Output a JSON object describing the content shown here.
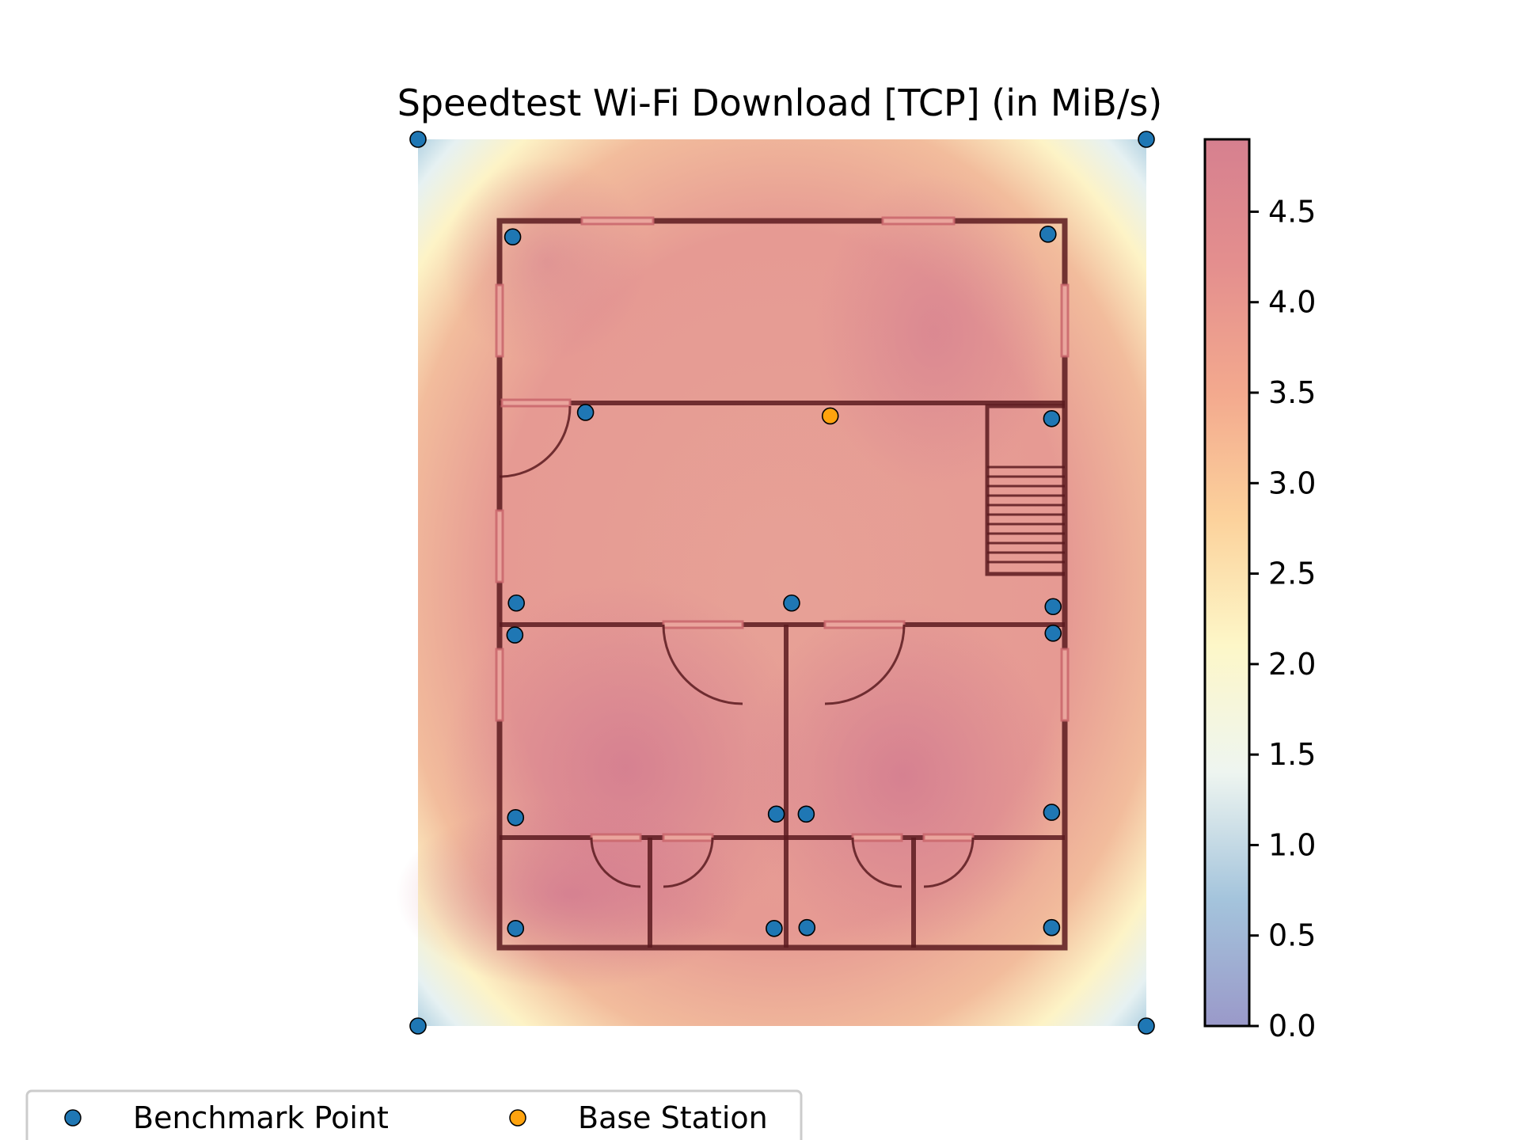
{
  "chart_data": {
    "type": "heatmap",
    "title": "Speedtest Wi-Fi Download [TCP] (in MiB/s)",
    "xlabel": "",
    "ylabel": "",
    "colorbar": {
      "range": [
        0.0,
        4.9
      ],
      "ticks": [
        "0.0",
        "0.5",
        "1.0",
        "1.5",
        "2.0",
        "2.5",
        "3.0",
        "3.5",
        "4.0",
        "4.5"
      ],
      "tick_values": [
        0.0,
        0.5,
        1.0,
        1.5,
        2.0,
        2.5,
        3.0,
        3.5,
        4.0,
        4.5
      ],
      "colormap": [
        "#9a99c9",
        "#a4c4dc",
        "#eef5f0",
        "#fdf7c8",
        "#fcd29c",
        "#f3a98e",
        "#e48f8e",
        "#d6808f"
      ]
    },
    "legend": {
      "placement": "bottom-left",
      "entries": [
        {
          "label": "Benchmark Point",
          "color": "#1f77b4"
        },
        {
          "label": "Base Station",
          "color": "#ffa30e"
        }
      ]
    },
    "points": {
      "benchmark": [
        {
          "x": 0,
          "y": 0
        },
        {
          "x": 100,
          "y": 0
        },
        {
          "x": 0,
          "y": 100
        },
        {
          "x": 100,
          "y": 100
        },
        {
          "x": 13,
          "y": 89
        },
        {
          "x": 86.5,
          "y": 89.3
        },
        {
          "x": 23,
          "y": 69.2
        },
        {
          "x": 87,
          "y": 68.5
        },
        {
          "x": 13.5,
          "y": 47.7
        },
        {
          "x": 51.3,
          "y": 47.7
        },
        {
          "x": 87.2,
          "y": 47.3
        },
        {
          "x": 13.3,
          "y": 44.1
        },
        {
          "x": 87.2,
          "y": 44.3
        },
        {
          "x": 13.4,
          "y": 23.5
        },
        {
          "x": 49.2,
          "y": 23.9
        },
        {
          "x": 53.3,
          "y": 23.9
        },
        {
          "x": 87,
          "y": 24.1
        },
        {
          "x": 13.4,
          "y": 11
        },
        {
          "x": 48.9,
          "y": 11
        },
        {
          "x": 53.4,
          "y": 11.1
        },
        {
          "x": 87,
          "y": 11.1
        }
      ],
      "base_station": [
        {
          "x": 56.6,
          "y": 68.8
        }
      ]
    }
  }
}
